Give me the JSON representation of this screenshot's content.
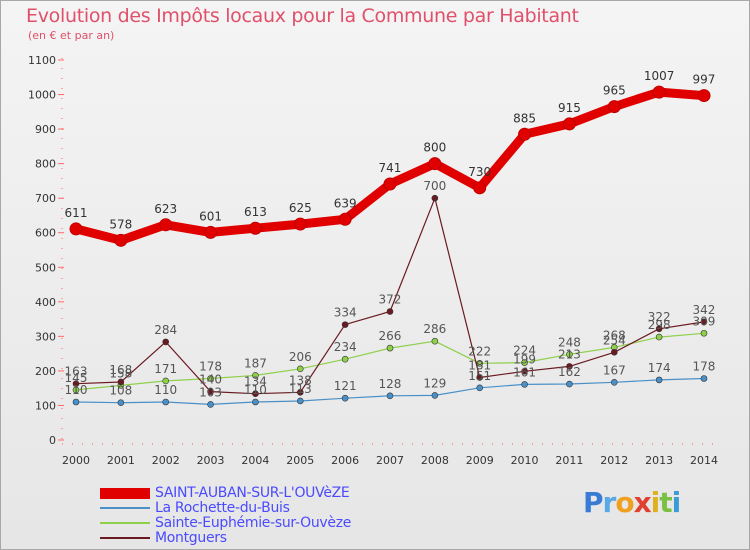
{
  "header": {
    "title": "Evolution des Impôts locaux pour la Commune par Habitant",
    "subtitle": "(en € et par an)"
  },
  "brand": {
    "letters": [
      "P",
      "r",
      "o",
      "x",
      "i",
      "t",
      "i"
    ],
    "colors": [
      "#3a7bd5",
      "#5aa9e6",
      "#f0a020",
      "#e04030",
      "#e0b020",
      "#7ac043",
      "#3a9bd5"
    ]
  },
  "chart_data": {
    "type": "line",
    "title": "Evolution des Impôts locaux pour la Commune par Habitant",
    "subtitle": "(en € et par an)",
    "x": [
      "2000",
      "2001",
      "2002",
      "2003",
      "2004",
      "2005",
      "2006",
      "2007",
      "2008",
      "2009",
      "2010",
      "2011",
      "2012",
      "2013",
      "2014"
    ],
    "ylim": [
      0,
      1100
    ],
    "yticks": [
      "0",
      "100",
      "200",
      "300",
      "400",
      "500",
      "600",
      "700",
      "800",
      "900",
      "1000",
      "1100"
    ],
    "grid": false,
    "legend_position": "bottom-left",
    "series": [
      {
        "name": "SAINT-AUBAN-SUR-L'OUVèZE",
        "color": "#e00000",
        "values": [
          611,
          578,
          623,
          601,
          613,
          625,
          639,
          741,
          800,
          730,
          885,
          915,
          965,
          1007,
          997
        ],
        "labels": [
          "611",
          "578",
          "623",
          "601",
          "613",
          "625",
          "639",
          "741",
          "800",
          "730",
          "885",
          "915",
          "965",
          "1007",
          "997"
        ]
      },
      {
        "name": "La Rochette-du-Buis",
        "color": "#4a90c8",
        "values": [
          110,
          108,
          110,
          103,
          110,
          113,
          121,
          128,
          129,
          151,
          161,
          162,
          167,
          174,
          178
        ],
        "labels": [
          "110",
          "108",
          "110",
          "103",
          "110",
          "113",
          "121",
          "128",
          "129",
          "151",
          "161",
          "162",
          "167",
          "174",
          "178"
        ]
      },
      {
        "name": "Sainte-Euphémie-sur-Ouvèze",
        "color": "#8ed04a",
        "values": [
          145,
          158,
          171,
          178,
          187,
          206,
          234,
          266,
          286,
          222,
          224,
          248,
          268,
          298,
          309
        ],
        "labels": [
          "145",
          "158",
          "171",
          "178",
          "187",
          "206",
          "234",
          "266",
          "286",
          "222",
          "224",
          "248",
          "268",
          "298",
          "309"
        ]
      },
      {
        "name": "Montguers",
        "color": "#6b1a22",
        "values": [
          163,
          168,
          284,
          140,
          134,
          138,
          334,
          372,
          700,
          181,
          199,
          213,
          254,
          322,
          342
        ],
        "labels": [
          "163",
          "168",
          "284",
          "140",
          "134",
          "138",
          "334",
          "372",
          "700",
          "181",
          "199",
          "213",
          "254",
          "322",
          "342"
        ]
      }
    ]
  }
}
